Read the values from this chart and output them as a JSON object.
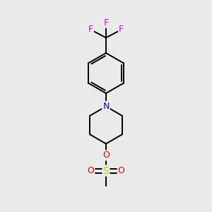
{
  "background_color": "#eaeaea",
  "atom_colors": {
    "C": "#000000",
    "F": "#e000e0",
    "N": "#0000e0",
    "O": "#e00000",
    "S": "#c8c800"
  },
  "bond_color": "#000000",
  "bond_width": 1.4,
  "figsize": [
    3.0,
    3.0
  ],
  "dpi": 100,
  "xlim": [
    0,
    10
  ],
  "ylim": [
    0,
    10
  ]
}
